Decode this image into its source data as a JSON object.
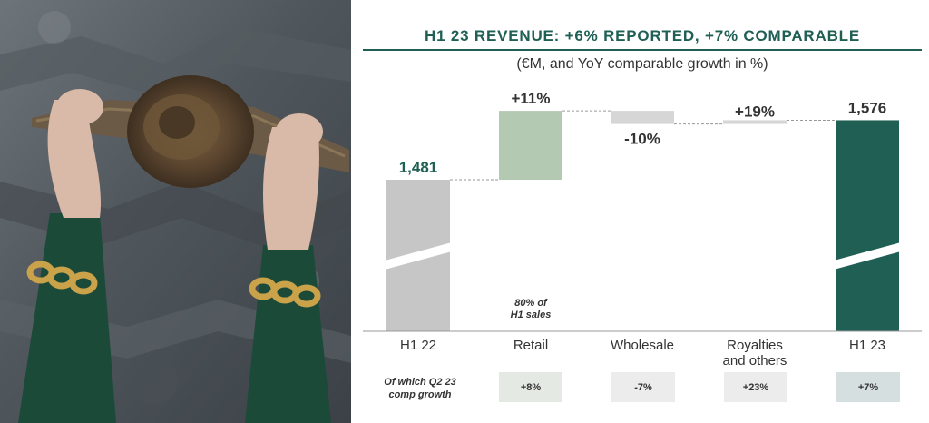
{
  "header": {
    "title": "H1 23 REVENUE: +6% REPORTED, +7% COMPARABLE",
    "subtitle": "(€M, and YoY comparable growth in %)"
  },
  "photo": {
    "icon": "hands-holding-bark-photo"
  },
  "chart_data": {
    "type": "waterfall",
    "title": "H1 23 REVENUE: +6% REPORTED, +7% COMPARABLE",
    "subtitle": "(€M, and YoY comparable growth in %)",
    "categories": [
      "H1 22",
      "Retail",
      "Wholesale",
      "Royalties\nand others",
      "H1 23"
    ],
    "category_labels": [
      "H1 22",
      "Retail",
      "Wholesale",
      "Royalties",
      "and others",
      "H1 23"
    ],
    "start": 1481,
    "end": 1576,
    "steps": [
      {
        "category": "Retail",
        "from": 1481,
        "to": 1591,
        "label": "+11%"
      },
      {
        "category": "Wholesale",
        "from": 1591,
        "to": 1570,
        "label": "-10%"
      },
      {
        "category": "Royalties and others",
        "from": 1570,
        "to": 1576,
        "label": "+19%"
      }
    ],
    "total_labels": [
      "1,481",
      "1,576"
    ],
    "ylim": [
      0,
      1620
    ],
    "axis_break": true,
    "colors": {
      "h1_22": "#c6c6c6",
      "retail": "#b4c9b2",
      "wholesale": "#d6d6d6",
      "royalties": "#d6d6d6",
      "h1_23": "#1f5f54",
      "label_total": "#1f5f54",
      "label_step": "#333333"
    },
    "annotation": "80% of H1 sales",
    "annotation_lines": [
      "80% of",
      "H1 sales"
    ],
    "comp_growth_row": {
      "label": "Of which Q2 23 comp growth",
      "label_lines": [
        "Of which Q2 23",
        "comp growth"
      ],
      "values": [
        "+8%",
        "-7%",
        "+23%",
        "+7%"
      ],
      "colors": [
        "#e4e9e4",
        "#ececec",
        "#ececec",
        "#d5dfe0"
      ]
    }
  }
}
